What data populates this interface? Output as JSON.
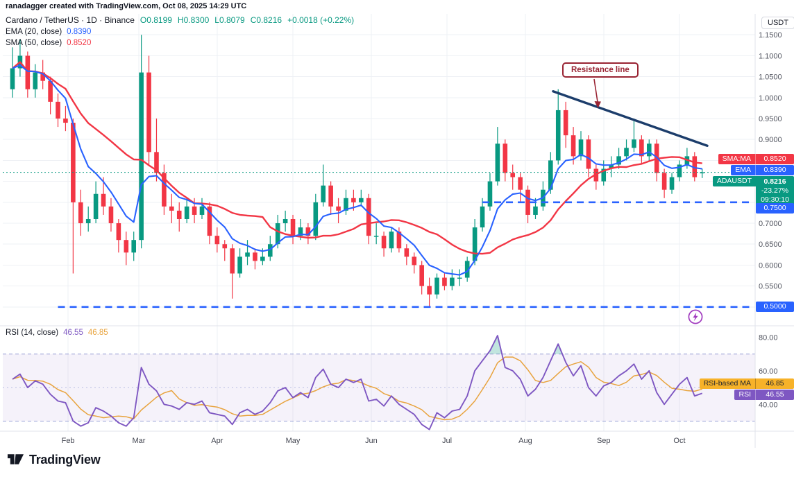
{
  "header": {
    "credit": "ranadagger created with TradingView.com, Oct 08, 2025 14:29 UTC"
  },
  "symbol_legend": {
    "title": "Cardano / TetherUS · 1D · Binance",
    "open": "O0.8199",
    "high": "H0.8300",
    "low": "L0.8079",
    "close": "C0.8216",
    "change": "+0.0018 (+0.22%)"
  },
  "indicator_legend": {
    "ema_label": "EMA (20, close)",
    "ema_value": "0.8390",
    "sma_label": "SMA (50, close)",
    "sma_value": "0.8520"
  },
  "rsi_legend": {
    "label": "RSI (14, close)",
    "rsi_value": "46.55",
    "ma_value": "46.85"
  },
  "price_axis": {
    "currency": "USDT",
    "plain_labels": [
      {
        "text": "1.1500",
        "v": 1.15
      },
      {
        "text": "1.1000",
        "v": 1.1
      },
      {
        "text": "1.0500",
        "v": 1.05
      },
      {
        "text": "1.0000",
        "v": 1.0
      },
      {
        "text": "0.9500",
        "v": 0.95
      },
      {
        "text": "0.9000",
        "v": 0.9
      },
      {
        "text": "0.7000",
        "v": 0.7
      },
      {
        "text": "0.6500",
        "v": 0.65
      },
      {
        "text": "0.6000",
        "v": 0.6
      },
      {
        "text": "0.5500",
        "v": 0.55
      }
    ],
    "support_boxes": [
      {
        "text": "0.7500",
        "v": 0.75
      },
      {
        "text": "0.5000",
        "v": 0.5
      }
    ],
    "rsi_labels": [
      {
        "text": "80.00",
        "v": 80
      },
      {
        "text": "60.00",
        "v": 60
      },
      {
        "text": "40.00",
        "v": 40
      }
    ]
  },
  "pills": {
    "sma": {
      "label": "SMA:MA",
      "value": "0.8520"
    },
    "ema": {
      "label": "EMA",
      "value": "0.8390"
    },
    "symbol": {
      "label": "ADAUSDT",
      "value": "0.8216",
      "change_pct": "-23.27%",
      "countdown": "09:30:10"
    },
    "rsi_ma": {
      "label": "RSI-based MA",
      "value": "46.85"
    },
    "rsi": {
      "label": "RSI",
      "value": "46.55"
    }
  },
  "annotations": {
    "resistance_text": "Resistance line"
  },
  "footer": {
    "brand": "TradingView"
  },
  "colors": {
    "up": "#089981",
    "down": "#f23645",
    "ema": "#2962ff",
    "sma": "#f23645",
    "rsi": "#7e57c2",
    "rsi_ma": "#e8a33d",
    "drawing_blue": "#2962ff",
    "trendline": "#1c3d6b",
    "annotation_red": "#992433",
    "last_price": "#089981"
  },
  "chart_data": {
    "type": "candlestick",
    "title": "Cardano / TetherUS (ADAUSDT) · 1D · Binance",
    "x_axis": {
      "start_date": "2025-01-10",
      "days_per_candle": 3,
      "month_ticks": [
        {
          "label": "Feb",
          "day": 22
        },
        {
          "label": "Mar",
          "day": 50
        },
        {
          "label": "Apr",
          "day": 81
        },
        {
          "label": "May",
          "day": 111
        },
        {
          "label": "Jun",
          "day": 142
        },
        {
          "label": "Jul",
          "day": 172
        },
        {
          "label": "Aug",
          "day": 203
        },
        {
          "label": "Sep",
          "day": 234
        },
        {
          "label": "Oct",
          "day": 264
        }
      ]
    },
    "y_axis": {
      "range": [
        0.46,
        1.2
      ],
      "gridlines": [
        0.5,
        0.55,
        0.6,
        0.65,
        0.7,
        0.75,
        0.8,
        0.85,
        0.9,
        0.95,
        1.0,
        1.05,
        1.1,
        1.15
      ]
    },
    "last": {
      "open": 0.8199,
      "high": 0.83,
      "low": 0.8079,
      "close": 0.8216,
      "change_abs": 0.0018,
      "change_pct": 0.22
    },
    "last_price": 0.8216,
    "candles_ohlc": [
      [
        1.02,
        1.12,
        1.0,
        1.07
      ],
      [
        1.07,
        1.14,
        1.05,
        1.1
      ],
      [
        1.1,
        1.11,
        1.0,
        1.02
      ],
      [
        1.02,
        1.08,
        1.0,
        1.06
      ],
      [
        1.06,
        1.09,
        1.02,
        1.04
      ],
      [
        1.04,
        1.05,
        0.96,
        0.99
      ],
      [
        0.99,
        1.01,
        0.93,
        0.95
      ],
      [
        0.95,
        0.98,
        0.92,
        0.94
      ],
      [
        0.94,
        0.95,
        0.58,
        0.75
      ],
      [
        0.75,
        0.78,
        0.67,
        0.7
      ],
      [
        0.7,
        0.74,
        0.68,
        0.71
      ],
      [
        0.71,
        0.8,
        0.7,
        0.77
      ],
      [
        0.77,
        0.81,
        0.72,
        0.74
      ],
      [
        0.74,
        0.76,
        0.68,
        0.7
      ],
      [
        0.7,
        0.71,
        0.63,
        0.66
      ],
      [
        0.66,
        0.68,
        0.6,
        0.63
      ],
      [
        0.63,
        0.68,
        0.61,
        0.66
      ],
      [
        0.66,
        1.15,
        0.64,
        1.06
      ],
      [
        1.06,
        1.1,
        0.84,
        0.87
      ],
      [
        0.87,
        0.95,
        0.8,
        0.82
      ],
      [
        0.82,
        0.84,
        0.72,
        0.74
      ],
      [
        0.74,
        0.77,
        0.7,
        0.73
      ],
      [
        0.73,
        0.75,
        0.68,
        0.71
      ],
      [
        0.71,
        0.76,
        0.7,
        0.74
      ],
      [
        0.74,
        0.76,
        0.7,
        0.72
      ],
      [
        0.72,
        0.76,
        0.71,
        0.74
      ],
      [
        0.74,
        0.75,
        0.65,
        0.67
      ],
      [
        0.67,
        0.69,
        0.63,
        0.65
      ],
      [
        0.65,
        0.66,
        0.61,
        0.64
      ],
      [
        0.64,
        0.65,
        0.52,
        0.58
      ],
      [
        0.58,
        0.64,
        0.57,
        0.62
      ],
      [
        0.62,
        0.66,
        0.6,
        0.63
      ],
      [
        0.63,
        0.64,
        0.59,
        0.61
      ],
      [
        0.61,
        0.64,
        0.6,
        0.62
      ],
      [
        0.62,
        0.67,
        0.61,
        0.65
      ],
      [
        0.65,
        0.72,
        0.64,
        0.7
      ],
      [
        0.7,
        0.73,
        0.68,
        0.71
      ],
      [
        0.71,
        0.72,
        0.65,
        0.67
      ],
      [
        0.67,
        0.71,
        0.66,
        0.69
      ],
      [
        0.69,
        0.7,
        0.65,
        0.67
      ],
      [
        0.67,
        0.77,
        0.66,
        0.75
      ],
      [
        0.75,
        0.84,
        0.74,
        0.79
      ],
      [
        0.79,
        0.8,
        0.72,
        0.74
      ],
      [
        0.74,
        0.76,
        0.7,
        0.73
      ],
      [
        0.73,
        0.78,
        0.72,
        0.76
      ],
      [
        0.76,
        0.78,
        0.73,
        0.75
      ],
      [
        0.75,
        0.78,
        0.74,
        0.76
      ],
      [
        0.76,
        0.77,
        0.65,
        0.67
      ],
      [
        0.67,
        0.7,
        0.65,
        0.67
      ],
      [
        0.67,
        0.68,
        0.62,
        0.64
      ],
      [
        0.64,
        0.69,
        0.63,
        0.68
      ],
      [
        0.68,
        0.69,
        0.63,
        0.64
      ],
      [
        0.64,
        0.65,
        0.6,
        0.62
      ],
      [
        0.62,
        0.63,
        0.58,
        0.6
      ],
      [
        0.6,
        0.61,
        0.53,
        0.55
      ],
      [
        0.55,
        0.57,
        0.5,
        0.53
      ],
      [
        0.53,
        0.58,
        0.52,
        0.57
      ],
      [
        0.57,
        0.58,
        0.54,
        0.55
      ],
      [
        0.55,
        0.59,
        0.54,
        0.57
      ],
      [
        0.57,
        0.59,
        0.55,
        0.57
      ],
      [
        0.57,
        0.62,
        0.56,
        0.61
      ],
      [
        0.61,
        0.71,
        0.6,
        0.69
      ],
      [
        0.69,
        0.76,
        0.68,
        0.74
      ],
      [
        0.74,
        0.82,
        0.73,
        0.8
      ],
      [
        0.8,
        0.93,
        0.79,
        0.89
      ],
      [
        0.89,
        0.9,
        0.8,
        0.82
      ],
      [
        0.82,
        0.84,
        0.78,
        0.81
      ],
      [
        0.81,
        0.82,
        0.75,
        0.78
      ],
      [
        0.78,
        0.79,
        0.7,
        0.72
      ],
      [
        0.72,
        0.76,
        0.71,
        0.74
      ],
      [
        0.74,
        0.8,
        0.73,
        0.78
      ],
      [
        0.78,
        0.87,
        0.77,
        0.85
      ],
      [
        0.85,
        1.02,
        0.84,
        0.97
      ],
      [
        0.97,
        0.99,
        0.88,
        0.91
      ],
      [
        0.91,
        0.93,
        0.84,
        0.86
      ],
      [
        0.86,
        0.92,
        0.85,
        0.9
      ],
      [
        0.9,
        0.91,
        0.81,
        0.83
      ],
      [
        0.83,
        0.84,
        0.78,
        0.8
      ],
      [
        0.8,
        0.85,
        0.79,
        0.83
      ],
      [
        0.83,
        0.86,
        0.81,
        0.84
      ],
      [
        0.84,
        0.88,
        0.83,
        0.86
      ],
      [
        0.86,
        0.9,
        0.85,
        0.88
      ],
      [
        0.88,
        0.95,
        0.87,
        0.9
      ],
      [
        0.9,
        0.91,
        0.84,
        0.86
      ],
      [
        0.86,
        0.9,
        0.85,
        0.89
      ],
      [
        0.89,
        0.9,
        0.8,
        0.82
      ],
      [
        0.82,
        0.83,
        0.76,
        0.78
      ],
      [
        0.78,
        0.82,
        0.77,
        0.81
      ],
      [
        0.81,
        0.85,
        0.8,
        0.84
      ],
      [
        0.84,
        0.88,
        0.83,
        0.86
      ],
      [
        0.86,
        0.87,
        0.8,
        0.81
      ],
      [
        0.8199,
        0.83,
        0.8079,
        0.8216
      ]
    ],
    "overlays": [
      {
        "name": "EMA 20",
        "type": "ema",
        "period": 20,
        "color": "#2962ff",
        "current": 0.839
      },
      {
        "name": "SMA 50",
        "type": "sma",
        "period": 50,
        "color": "#f23645",
        "current": 0.852
      }
    ],
    "drawings": {
      "resistance_trendline": {
        "label": "Resistance line",
        "from": {
          "day": 214,
          "price": 1.015
        },
        "to": {
          "day": 275,
          "price": 0.885
        }
      },
      "support_levels": [
        {
          "price": 0.75,
          "from_day": 186
        },
        {
          "price": 0.5,
          "from_day": 18
        }
      ]
    },
    "rsi_pane": {
      "name": "RSI",
      "period": 14,
      "current": 46.55,
      "ma_current": 46.85,
      "range": [
        24,
        86
      ],
      "bands": [
        70,
        50,
        30
      ],
      "axis_ticks": [
        80,
        60,
        40
      ],
      "values": [
        55,
        58,
        50,
        54,
        52,
        46,
        42,
        41,
        30,
        27,
        29,
        38,
        36,
        33,
        29,
        27,
        32,
        62,
        52,
        48,
        40,
        39,
        37,
        41,
        40,
        42,
        35,
        34,
        33,
        28,
        35,
        37,
        34,
        36,
        41,
        48,
        50,
        44,
        47,
        44,
        56,
        61,
        52,
        50,
        55,
        53,
        55,
        42,
        43,
        39,
        45,
        40,
        37,
        34,
        28,
        25,
        35,
        32,
        36,
        37,
        45,
        60,
        66,
        72,
        81,
        62,
        60,
        55,
        45,
        49,
        56,
        66,
        76,
        65,
        57,
        63,
        50,
        45,
        51,
        53,
        57,
        60,
        64,
        55,
        60,
        47,
        40,
        46,
        52,
        56,
        45,
        46.55
      ]
    }
  }
}
